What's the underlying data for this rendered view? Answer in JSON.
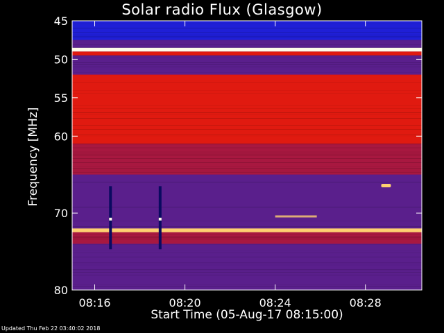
{
  "chart_data": {
    "type": "heatmap",
    "title": "Solar radio Flux (Glasgow)",
    "xlabel": "Start Time (05-Aug-17 08:15:00)",
    "ylabel": "Frequency [MHz]",
    "x_ticks": [
      "08:16",
      "08:20",
      "08:24",
      "08:28"
    ],
    "y_ticks": [
      "45",
      "50",
      "55",
      "60",
      "70",
      "80"
    ],
    "y_tick_values": [
      45,
      50,
      55,
      60,
      70,
      80
    ],
    "x_tick_minutes": [
      16,
      20,
      24,
      28
    ],
    "xlim_minutes": [
      15,
      30.5
    ],
    "ylim": [
      45,
      80
    ],
    "bands": [
      {
        "from": 45,
        "to": 47.5,
        "level": "blue"
      },
      {
        "from": 47.5,
        "to": 48.5,
        "level": "purple"
      },
      {
        "from": 48.5,
        "to": 49.0,
        "level": "white"
      },
      {
        "from": 49.0,
        "to": 49.5,
        "level": "red"
      },
      {
        "from": 49.5,
        "to": 52.0,
        "level": "purple"
      },
      {
        "from": 52.0,
        "to": 61.0,
        "level": "red"
      },
      {
        "from": 61.0,
        "to": 65.0,
        "level": "darkred"
      },
      {
        "from": 65.0,
        "to": 72.0,
        "level": "purple"
      },
      {
        "from": 72.0,
        "to": 72.5,
        "level": "yellow"
      },
      {
        "from": 72.5,
        "to": 74.0,
        "level": "darkred"
      },
      {
        "from": 74.0,
        "to": 80.0,
        "level": "purple"
      }
    ],
    "colors": {
      "blue": "#1f1fd6",
      "purple": "#5a1f8c",
      "darkred": "#a81840",
      "red": "#e01a10",
      "yellow": "#ffd070",
      "white": "#fffbe8",
      "background": "#000000",
      "text": "#ffffff"
    }
  },
  "footer": "Updated Thu Feb 22 03:40:02 2018"
}
